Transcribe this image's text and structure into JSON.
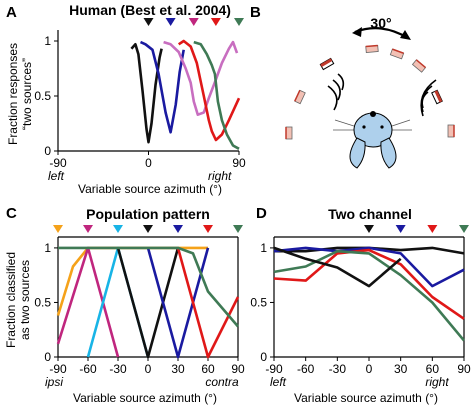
{
  "panels": {
    "A": {
      "letter": "A",
      "title": "Human (Best et al. 2004)",
      "ylabel_line1": "Fraction responses",
      "ylabel_line2": "“two sources”",
      "xlabel": "Variable source azimuth (°)",
      "left_note": "left",
      "right_note": "right"
    },
    "B": {
      "letter": "B",
      "angle_label": "30°"
    },
    "C": {
      "letter": "C",
      "title": "Population pattern",
      "ylabel_line1": "Fraction classified",
      "ylabel_line2": "as two sources",
      "xlabel": "Variable source azimuth (°)",
      "left_note": "ipsi",
      "right_note": "contra"
    },
    "D": {
      "letter": "D",
      "title": "Two channel",
      "xlabel": "Variable source azimuth (°)",
      "left_note": "left",
      "right_note": "right"
    }
  },
  "colors": {
    "black": "#111111",
    "blue": "#1a1aa0",
    "red": "#e01818",
    "magenta": "#c0267e",
    "green": "#3f7a55",
    "orange": "#f5a21a",
    "cyan": "#18b4e6",
    "pink": "#c86ec0",
    "speaker_fill": "#f2c0b4"
  },
  "chart_data": [
    {
      "id": "A",
      "type": "line",
      "title": "Human (Best et al. 2004)",
      "xlabel": "Variable source azimuth (°)",
      "ylabel": "Fraction responses “two sources”",
      "xlim": [
        -90,
        90
      ],
      "ylim": [
        0,
        1.1
      ],
      "xticks": [
        -90,
        0,
        90
      ],
      "yticks": [
        0,
        0.5,
        1
      ],
      "markers": [
        {
          "x": 0,
          "color": "#111111"
        },
        {
          "x": 22,
          "color": "#1a1aa0"
        },
        {
          "x": 45,
          "color": "#c0267e"
        },
        {
          "x": 67,
          "color": "#e01818"
        },
        {
          "x": 90,
          "color": "#3f7a55"
        }
      ],
      "series": [
        {
          "color": "#111111",
          "x": [
            -17,
            -13,
            -10,
            -6,
            -2,
            0,
            3,
            7,
            11,
            13
          ],
          "y": [
            0.93,
            0.97,
            0.88,
            0.55,
            0.2,
            0.08,
            0.25,
            0.6,
            0.85,
            0.93
          ]
        },
        {
          "color": "#1a1aa0",
          "x": [
            -8,
            -3,
            4,
            10,
            17,
            22,
            27,
            31,
            35
          ],
          "y": [
            0.99,
            0.97,
            0.92,
            0.7,
            0.35,
            0.17,
            0.42,
            0.72,
            0.92
          ]
        },
        {
          "color": "#c86ec0",
          "x": [
            15,
            22,
            30,
            37,
            42,
            45,
            49,
            55,
            60,
            67,
            73,
            80,
            84,
            88
          ],
          "y": [
            0.99,
            0.97,
            0.9,
            0.75,
            0.62,
            0.45,
            0.33,
            0.35,
            0.48,
            0.65,
            0.8,
            0.93,
            0.99,
            0.89
          ]
        },
        {
          "color": "#e01818",
          "x": [
            30,
            35,
            42,
            48,
            55,
            60,
            63,
            67,
            73,
            80,
            90
          ],
          "y": [
            0.97,
            1.0,
            0.95,
            0.8,
            0.5,
            0.28,
            0.18,
            0.1,
            0.15,
            0.28,
            0.48
          ]
        },
        {
          "color": "#3f7a55",
          "x": [
            45,
            52,
            58,
            63,
            66,
            69,
            73,
            78,
            84,
            90
          ],
          "y": [
            0.99,
            0.97,
            0.88,
            0.78,
            0.7,
            0.45,
            0.28,
            0.15,
            0.05,
            0.02
          ]
        }
      ]
    },
    {
      "id": "C",
      "type": "line",
      "title": "Population pattern",
      "xlabel": "Variable source azimuth (°)",
      "ylabel": "Fraction classified as two sources",
      "xlim": [
        -90,
        90
      ],
      "ylim": [
        0,
        1.1
      ],
      "xticks": [
        -90,
        -60,
        -30,
        0,
        30,
        60,
        90
      ],
      "yticks": [
        0,
        0.5,
        1
      ],
      "markers": [
        {
          "x": -90,
          "color": "#f5a21a"
        },
        {
          "x": -60,
          "color": "#c0267e"
        },
        {
          "x": -30,
          "color": "#18b4e6"
        },
        {
          "x": 0,
          "color": "#111111"
        },
        {
          "x": 30,
          "color": "#1a1aa0"
        },
        {
          "x": 60,
          "color": "#e01818"
        },
        {
          "x": 90,
          "color": "#3f7a55"
        }
      ],
      "series": [
        {
          "color": "#f5a21a",
          "x": [
            -90,
            -75,
            -60,
            -30,
            60
          ],
          "y": [
            0.38,
            0.83,
            1.0,
            1.0,
            1.0
          ]
        },
        {
          "color": "#c0267e",
          "x": [
            -90,
            -60,
            -30
          ],
          "y": [
            0.12,
            1.0,
            0.0
          ]
        },
        {
          "color": "#18b4e6",
          "x": [
            -60,
            -30,
            0
          ],
          "y": [
            0.0,
            1.0,
            0.0
          ]
        },
        {
          "color": "#111111",
          "x": [
            -30,
            0,
            30
          ],
          "y": [
            1.0,
            0.0,
            1.0
          ]
        },
        {
          "color": "#1a1aa0",
          "x": [
            0,
            30,
            60
          ],
          "y": [
            1.0,
            0.0,
            1.0
          ]
        },
        {
          "color": "#e01818",
          "x": [
            30,
            60,
            90
          ],
          "y": [
            1.0,
            0.0,
            0.55
          ]
        },
        {
          "color": "#3f7a55",
          "x": [
            -90,
            30,
            45,
            60,
            90
          ],
          "y": [
            1.0,
            1.0,
            0.95,
            0.6,
            0.28
          ]
        }
      ]
    },
    {
      "id": "D",
      "type": "line",
      "title": "Two channel",
      "xlabel": "Variable source azimuth (°)",
      "ylabel": "",
      "xlim": [
        -90,
        90
      ],
      "ylim": [
        0,
        1.1
      ],
      "xticks": [
        -90,
        -60,
        -30,
        0,
        30,
        60,
        90
      ],
      "yticks": [
        0,
        0.5,
        1
      ],
      "markers": [
        {
          "x": 0,
          "color": "#111111"
        },
        {
          "x": 30,
          "color": "#1a1aa0"
        },
        {
          "x": 60,
          "color": "#e01818"
        },
        {
          "x": 90,
          "color": "#3f7a55"
        }
      ],
      "series": [
        {
          "color": "#111111",
          "x": [
            -90,
            -60,
            -30,
            0,
            30,
            60,
            90
          ],
          "y": [
            0.97,
            0.97,
            1.0,
            1.0,
            0.98,
            1.0,
            0.95
          ]
        },
        {
          "color": "#1a1aa0",
          "x": [
            -90,
            -60,
            -30,
            0,
            30,
            60,
            90
          ],
          "y": [
            0.97,
            1.0,
            0.97,
            1.0,
            0.95,
            0.65,
            0.8
          ]
        },
        {
          "color": "#e01818",
          "x": [
            -90,
            -60,
            -30,
            0,
            30,
            60,
            90
          ],
          "y": [
            0.72,
            0.7,
            0.95,
            0.98,
            0.85,
            0.55,
            0.35
          ]
        },
        {
          "color": "#3f7a55",
          "x": [
            -90,
            -60,
            -30,
            0,
            30,
            60,
            90
          ],
          "y": [
            0.78,
            0.83,
            0.97,
            0.95,
            0.75,
            0.5,
            0.15
          ]
        },
        {
          "color": "#111111",
          "x": [
            -90,
            -60,
            -30,
            0,
            30
          ],
          "y": [
            1.0,
            0.9,
            0.82,
            0.65,
            0.9
          ]
        }
      ]
    }
  ]
}
